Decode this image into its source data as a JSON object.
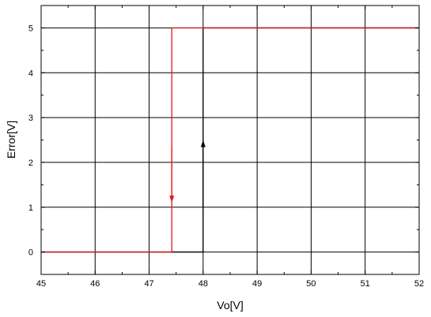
{
  "chart_data": {
    "type": "line",
    "xlabel": "Vo[V]",
    "ylabel": "Error[V]",
    "xlim": [
      45,
      52
    ],
    "ylim": [
      -0.5,
      5.5
    ],
    "xticks": [
      45,
      46,
      47,
      48,
      49,
      50,
      51,
      52
    ],
    "yticks": [
      0,
      1,
      2,
      3,
      4,
      5
    ],
    "x_tick_labels": [
      "45",
      "46",
      "47",
      "48",
      "49",
      "50",
      "51",
      "52"
    ],
    "y_tick_labels": [
      "0",
      "1",
      "2",
      "3",
      "4",
      "5"
    ],
    "grid": true,
    "series": [
      {
        "color": "#000000",
        "x": [
          45,
          48.0,
          48.0,
          52
        ],
        "y": [
          0,
          0,
          5,
          5
        ],
        "arrow": {
          "x": 48.0,
          "from_y": 1.0,
          "to_y": 2.5,
          "direction": "up"
        }
      },
      {
        "color": "#e41a1c",
        "x": [
          45,
          47.42,
          47.42,
          52
        ],
        "y": [
          0,
          0,
          5,
          5
        ],
        "arrow": {
          "x": 47.42,
          "from_y": 2.35,
          "to_y": 1.1,
          "direction": "down"
        }
      }
    ]
  }
}
